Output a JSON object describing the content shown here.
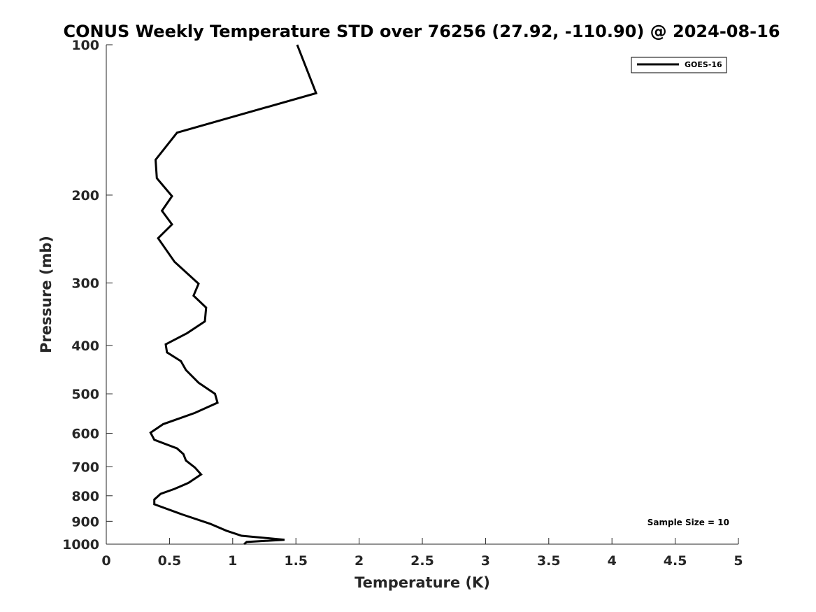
{
  "chart_data": {
    "type": "line",
    "title": "CONUS Weekly Temperature STD over 76256 (27.92, -110.90) @ 2024-08-16",
    "xlabel": "Temperature (K)",
    "ylabel": "Pressure (mb)",
    "xlim": [
      0,
      5
    ],
    "ylim": [
      1000,
      100
    ],
    "y_scale": "log",
    "y_reversed": true,
    "xticks": [
      0,
      0.5,
      1,
      1.5,
      2,
      2.5,
      3,
      3.5,
      4,
      4.5,
      5
    ],
    "xtick_labels": [
      "0",
      "0.5",
      "1",
      "1.5",
      "2",
      "2.5",
      "3",
      "3.5",
      "4",
      "4.5",
      "5"
    ],
    "yticks": [
      100,
      200,
      300,
      400,
      500,
      600,
      700,
      800,
      900,
      1000
    ],
    "ytick_labels": [
      "100",
      "200",
      "300",
      "400",
      "500",
      "600",
      "700",
      "800",
      "900",
      "1000"
    ],
    "grid": false,
    "legend_position": "top-right",
    "series": [
      {
        "name": "GOES-16",
        "color": "#000000",
        "points": [
          [
            1.51,
            100
          ],
          [
            1.66,
            125
          ],
          [
            0.56,
            150
          ],
          [
            0.39,
            170
          ],
          [
            0.4,
            185
          ],
          [
            0.52,
            201
          ],
          [
            0.44,
            215
          ],
          [
            0.52,
            229
          ],
          [
            0.41,
            244
          ],
          [
            0.54,
            272
          ],
          [
            0.73,
            301
          ],
          [
            0.69,
            318
          ],
          [
            0.79,
            336
          ],
          [
            0.78,
            358
          ],
          [
            0.64,
            378
          ],
          [
            0.47,
            398
          ],
          [
            0.48,
            413
          ],
          [
            0.59,
            430
          ],
          [
            0.63,
            448
          ],
          [
            0.73,
            475
          ],
          [
            0.86,
            500
          ],
          [
            0.88,
            521
          ],
          [
            0.7,
            546
          ],
          [
            0.45,
            575
          ],
          [
            0.35,
            598
          ],
          [
            0.38,
            618
          ],
          [
            0.56,
            643
          ],
          [
            0.61,
            660
          ],
          [
            0.63,
            680
          ],
          [
            0.7,
            702
          ],
          [
            0.75,
            725
          ],
          [
            0.65,
            754
          ],
          [
            0.54,
            775
          ],
          [
            0.43,
            793
          ],
          [
            0.38,
            814
          ],
          [
            0.38,
            832
          ],
          [
            0.6,
            872
          ],
          [
            0.82,
            910
          ],
          [
            0.95,
            940
          ],
          [
            1.07,
            962
          ],
          [
            1.41,
            980
          ],
          [
            1.11,
            990
          ],
          [
            1.09,
            1000
          ]
        ]
      }
    ],
    "annotations": [
      "Sample Size = 10"
    ]
  }
}
